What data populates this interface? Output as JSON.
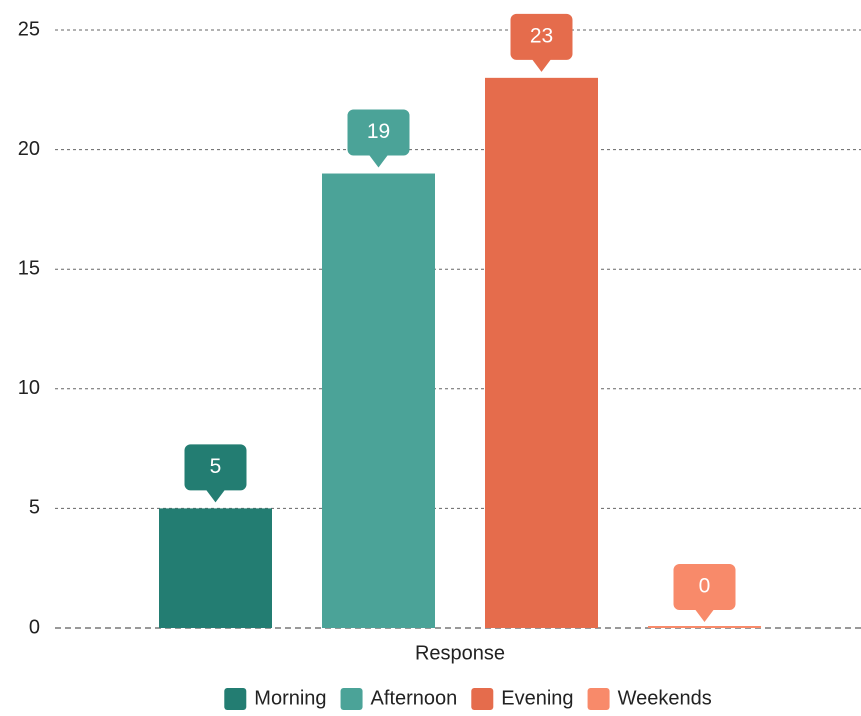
{
  "chart_data": {
    "type": "bar",
    "categories": [
      "Response"
    ],
    "series": [
      {
        "name": "Morning",
        "color": "#237d72",
        "values": [
          5
        ]
      },
      {
        "name": "Afternoon",
        "color": "#4ba398",
        "values": [
          19
        ]
      },
      {
        "name": "Evening",
        "color": "#e56c4c",
        "values": [
          23
        ]
      },
      {
        "name": "Weekends",
        "color": "#f88a6a",
        "values": [
          0
        ]
      }
    ],
    "ylim": [
      0,
      25
    ],
    "yticks": [
      0,
      5,
      10,
      15,
      20,
      25
    ],
    "grid": true,
    "legend": "bottom"
  }
}
